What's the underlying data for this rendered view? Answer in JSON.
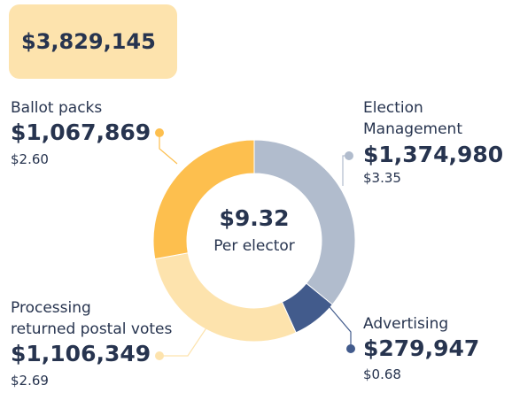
{
  "chart_data": {
    "type": "pie",
    "total": "$3,829,145",
    "center_value": "$9.32",
    "center_label": "Per elector",
    "categories": [
      "Election\nManagement",
      "Advertising",
      "Processing\nreturned postal votes",
      "Ballot packs"
    ],
    "values": [
      1374980,
      279947,
      1106349,
      1067869
    ],
    "value_labels": [
      "$1,374,980",
      "$279,947",
      "$1,106,349",
      "$1,067,869"
    ],
    "per_elector": [
      "$3.35",
      "$0.68",
      "$2.69",
      "$2.60"
    ],
    "colors": [
      "#b1bccd",
      "#425b8c",
      "#fde3ad",
      "#fdbf4e"
    ]
  }
}
